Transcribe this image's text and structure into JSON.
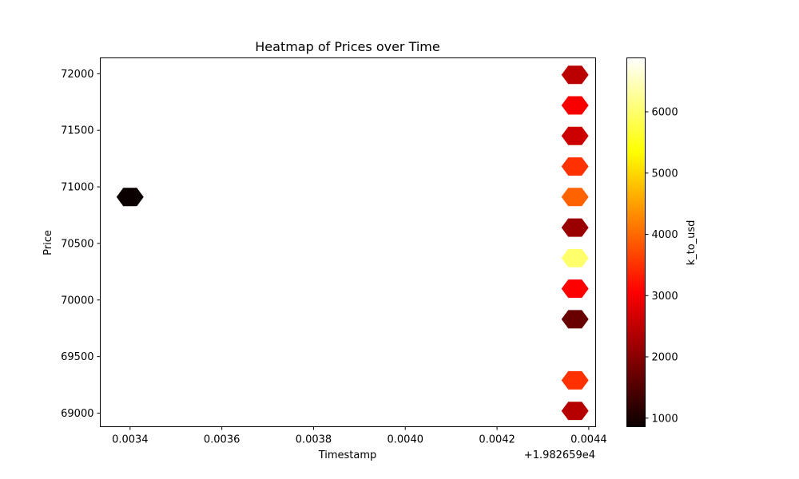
{
  "chart_data": {
    "type": "heatmap",
    "subtype": "hexbin",
    "title": "Heatmap of Prices over Time",
    "xlabel": "Timestamp",
    "ylabel": "Price",
    "x_offset_label": "+1.982659e4",
    "xlim": [
      0.003335,
      0.004415
    ],
    "ylim": [
      68880,
      72140
    ],
    "x_ticks": [
      0.0034,
      0.0036,
      0.0038,
      0.004,
      0.0042,
      0.0044
    ],
    "x_tick_labels": [
      "0.0034",
      "0.0036",
      "0.0038",
      "0.0040",
      "0.0042",
      "0.0044"
    ],
    "y_ticks": [
      69000,
      69500,
      70000,
      70500,
      71000,
      71500,
      72000
    ],
    "y_tick_labels": [
      "69000",
      "69500",
      "70000",
      "70500",
      "71000",
      "71500",
      "72000"
    ],
    "grid": false,
    "colormap": "hot",
    "colorbar": {
      "label": "k_to_usd",
      "range": [
        860,
        6880
      ],
      "ticks": [
        1000,
        2000,
        3000,
        4000,
        5000,
        6000
      ],
      "tick_labels": [
        "1000",
        "2000",
        "3000",
        "4000",
        "5000",
        "6000"
      ]
    },
    "cells": [
      {
        "x": 0.0034,
        "y": 70910,
        "value": 860
      },
      {
        "x": 0.00437,
        "y": 71990,
        "value": 2450
      },
      {
        "x": 0.00437,
        "y": 71720,
        "value": 3000
      },
      {
        "x": 0.00437,
        "y": 71450,
        "value": 2600
      },
      {
        "x": 0.00437,
        "y": 71180,
        "value": 3500
      },
      {
        "x": 0.00437,
        "y": 70910,
        "value": 3950
      },
      {
        "x": 0.00437,
        "y": 70640,
        "value": 2150
      },
      {
        "x": 0.00437,
        "y": 70370,
        "value": 6000
      },
      {
        "x": 0.00437,
        "y": 70100,
        "value": 3050
      },
      {
        "x": 0.00437,
        "y": 69830,
        "value": 1700
      },
      {
        "x": 0.00437,
        "y": 69290,
        "value": 3500
      },
      {
        "x": 0.00437,
        "y": 69020,
        "value": 2400
      }
    ]
  }
}
